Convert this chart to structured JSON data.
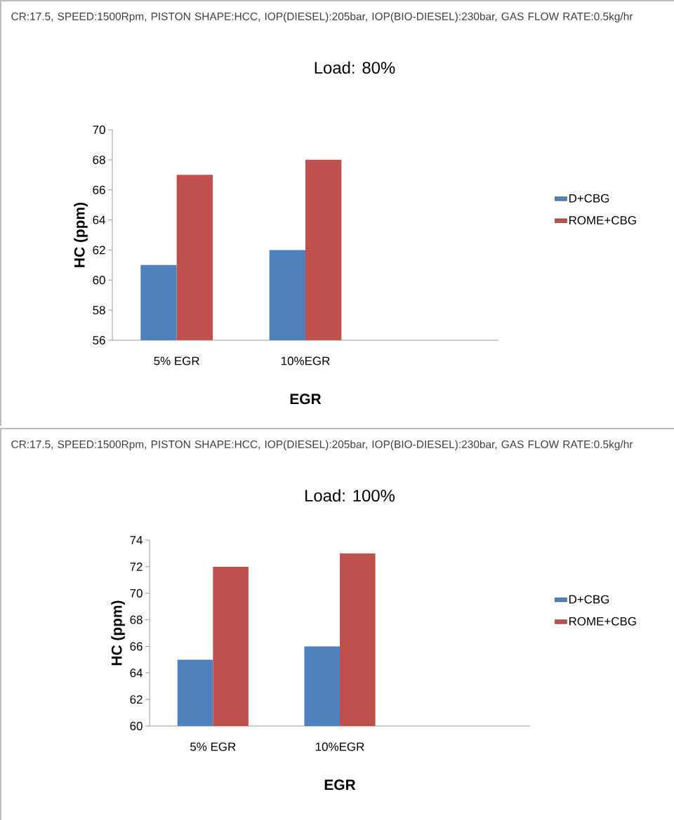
{
  "chart_data": [
    {
      "type": "bar",
      "subtitle": "CR:17.5, SPEED:1500Rpm, PISTON SHAPE:HCC,  IOP(DIESEL):205bar,  IOP(BIO-DIESEL):230bar, GAS FLOW RATE:0.5kg/hr",
      "title": "Load: 80%",
      "xlabel": "EGR",
      "ylabel": "HC (ppm)",
      "categories": [
        "5% EGR",
        "10%EGR",
        null
      ],
      "series": [
        {
          "name": "D+CBG",
          "color": "#4f81bd",
          "values": [
            61,
            62,
            null
          ]
        },
        {
          "name": "ROME+CBG",
          "color": "#c0504d",
          "values": [
            67,
            68,
            null
          ]
        }
      ],
      "ylim": [
        56,
        70
      ],
      "yticks": [
        56,
        58,
        60,
        62,
        64,
        66,
        68,
        70
      ],
      "legend": "right"
    },
    {
      "type": "bar",
      "subtitle": "CR:17.5, SPEED:1500Rpm, PISTON SHAPE:HCC,  IOP(DIESEL):205bar,  IOP(BIO-DIESEL):230bar, GAS FLOW RATE:0.5kg/hr",
      "title": "Load: 100%",
      "xlabel": "EGR",
      "ylabel": "HC (ppm)",
      "categories": [
        "5% EGR",
        "10%EGR",
        null
      ],
      "series": [
        {
          "name": "D+CBG",
          "color": "#4f81bd",
          "values": [
            65,
            66,
            null
          ]
        },
        {
          "name": "ROME+CBG",
          "color": "#c0504d",
          "values": [
            72,
            73,
            null
          ]
        }
      ],
      "ylim": [
        60,
        74
      ],
      "yticks": [
        60,
        62,
        64,
        66,
        68,
        70,
        72,
        74
      ],
      "legend": "right"
    }
  ]
}
